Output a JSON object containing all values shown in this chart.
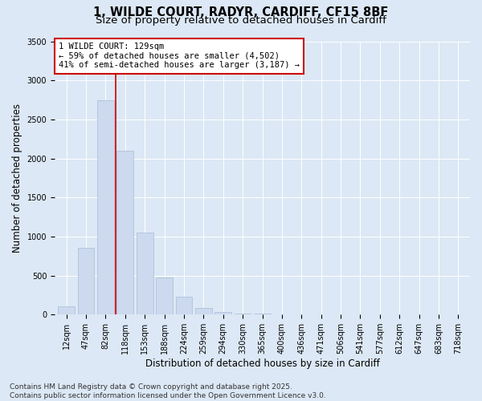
{
  "title_line1": "1, WILDE COURT, RADYR, CARDIFF, CF15 8BF",
  "title_line2": "Size of property relative to detached houses in Cardiff",
  "xlabel": "Distribution of detached houses by size in Cardiff",
  "ylabel": "Number of detached properties",
  "categories": [
    "12sqm",
    "47sqm",
    "82sqm",
    "118sqm",
    "153sqm",
    "188sqm",
    "224sqm",
    "259sqm",
    "294sqm",
    "330sqm",
    "365sqm",
    "400sqm",
    "436sqm",
    "471sqm",
    "506sqm",
    "541sqm",
    "577sqm",
    "612sqm",
    "647sqm",
    "683sqm",
    "718sqm"
  ],
  "values": [
    100,
    850,
    2750,
    2100,
    1050,
    475,
    225,
    80,
    30,
    15,
    8,
    5,
    3,
    2,
    1,
    1,
    0,
    0,
    0,
    0,
    0
  ],
  "bar_color": "#ccd9ee",
  "bar_edge_color": "#a8bcd8",
  "red_line_x": 3,
  "annotation_text_line1": "1 WILDE COURT: 129sqm",
  "annotation_text_line2": "← 59% of detached houses are smaller (4,502)",
  "annotation_text_line3": "41% of semi-detached houses are larger (3,187) →",
  "annotation_box_facecolor": "#ffffff",
  "annotation_box_edgecolor": "#cc0000",
  "red_line_color": "#cc0000",
  "ylim": [
    0,
    3500
  ],
  "yticks": [
    0,
    500,
    1000,
    1500,
    2000,
    2500,
    3000,
    3500
  ],
  "footer_line1": "Contains HM Land Registry data © Crown copyright and database right 2025.",
  "footer_line2": "Contains public sector information licensed under the Open Government Licence v3.0.",
  "bg_color": "#dce8f5",
  "plot_bg_color": "#dce8f5",
  "grid_color": "#ffffff",
  "title_fontsize": 10.5,
  "subtitle_fontsize": 9.5,
  "tick_fontsize": 7,
  "label_fontsize": 8.5,
  "footer_fontsize": 6.5,
  "annotation_fontsize": 7.5
}
